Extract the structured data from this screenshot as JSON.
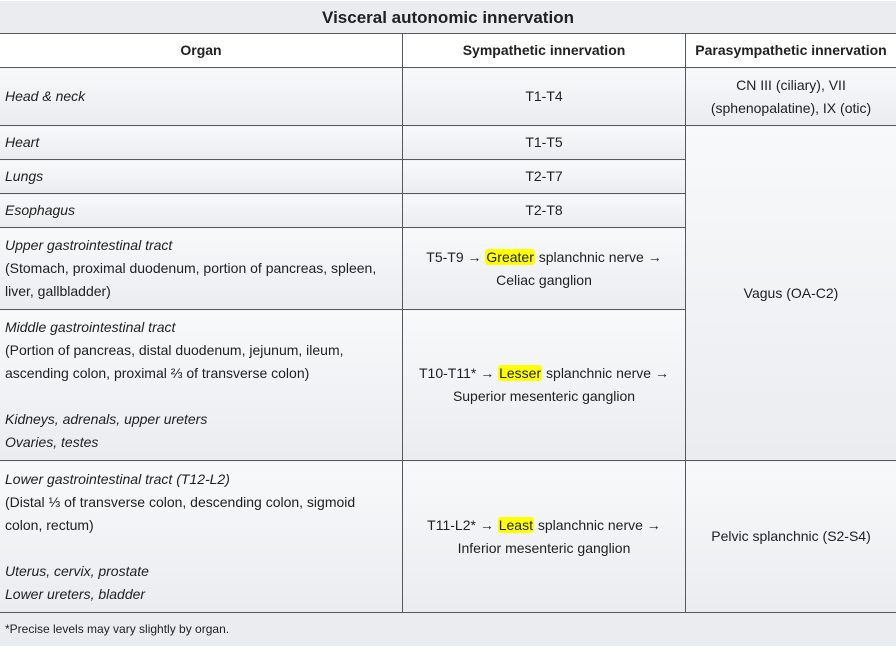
{
  "title": "Visceral autonomic innervation",
  "headers": {
    "organ": "Organ",
    "sympathetic": "Sympathetic innervation",
    "parasympathetic": "Parasympathetic innervation"
  },
  "rows": {
    "head_neck": {
      "organ": "Head & neck",
      "symp": "T1-T4",
      "para_line1": "CN III (ciliary), VII",
      "para_line2": "(sphenopalatine), IX (otic)"
    },
    "heart": {
      "organ": "Heart",
      "symp": "T1-T5"
    },
    "lungs": {
      "organ": "Lungs",
      "symp": "T2-T7"
    },
    "esophagus": {
      "organ": "Esophagus",
      "symp": "T2-T8"
    },
    "upper_gi": {
      "organ_title": "Upper gastrointestinal tract",
      "organ_detail_1": "(Stomach, proximal duodenum, portion of pancreas, spleen,",
      "organ_detail_2": "liver, gallbladder)",
      "symp_prefix": "T5-T9 → ",
      "symp_highlight": "Greater",
      "symp_suffix": " splanchnic nerve →",
      "symp_line2": "Celiac ganglion"
    },
    "middle_gi": {
      "organ_title": "Middle gastrointestinal tract",
      "organ_detail_1": "(Portion of pancreas, distal duodenum, jejunum, ileum,",
      "organ_detail_2": "ascending colon, proximal ⅔ of transverse colon)",
      "organ_extra_1": "Kidneys, adrenals, upper ureters",
      "organ_extra_2": "Ovaries, testes",
      "symp_prefix": "T10-T11* → ",
      "symp_highlight": "Lesser",
      "symp_suffix": " splanchnic nerve →",
      "symp_line2": "Superior mesenteric ganglion"
    },
    "lower_gi": {
      "organ_title": "Lower gastrointestinal tract (T12-L2)",
      "organ_detail_1": "(Distal ⅓ of transverse colon, descending colon, sigmoid",
      "organ_detail_2": "colon, rectum)",
      "organ_extra_1": "Uterus, cervix, prostate",
      "organ_extra_2": "Lower ureters, bladder",
      "symp_prefix": "T11-L2* → ",
      "symp_highlight": "Least",
      "symp_suffix": " splanchnic nerve →",
      "symp_line2": "Inferior mesenteric ganglion",
      "para": "Pelvic splanchnic (S2-S4)"
    }
  },
  "vagus": "Vagus (OA-C2)",
  "footnote": "*Precise levels may vary slightly by organ."
}
